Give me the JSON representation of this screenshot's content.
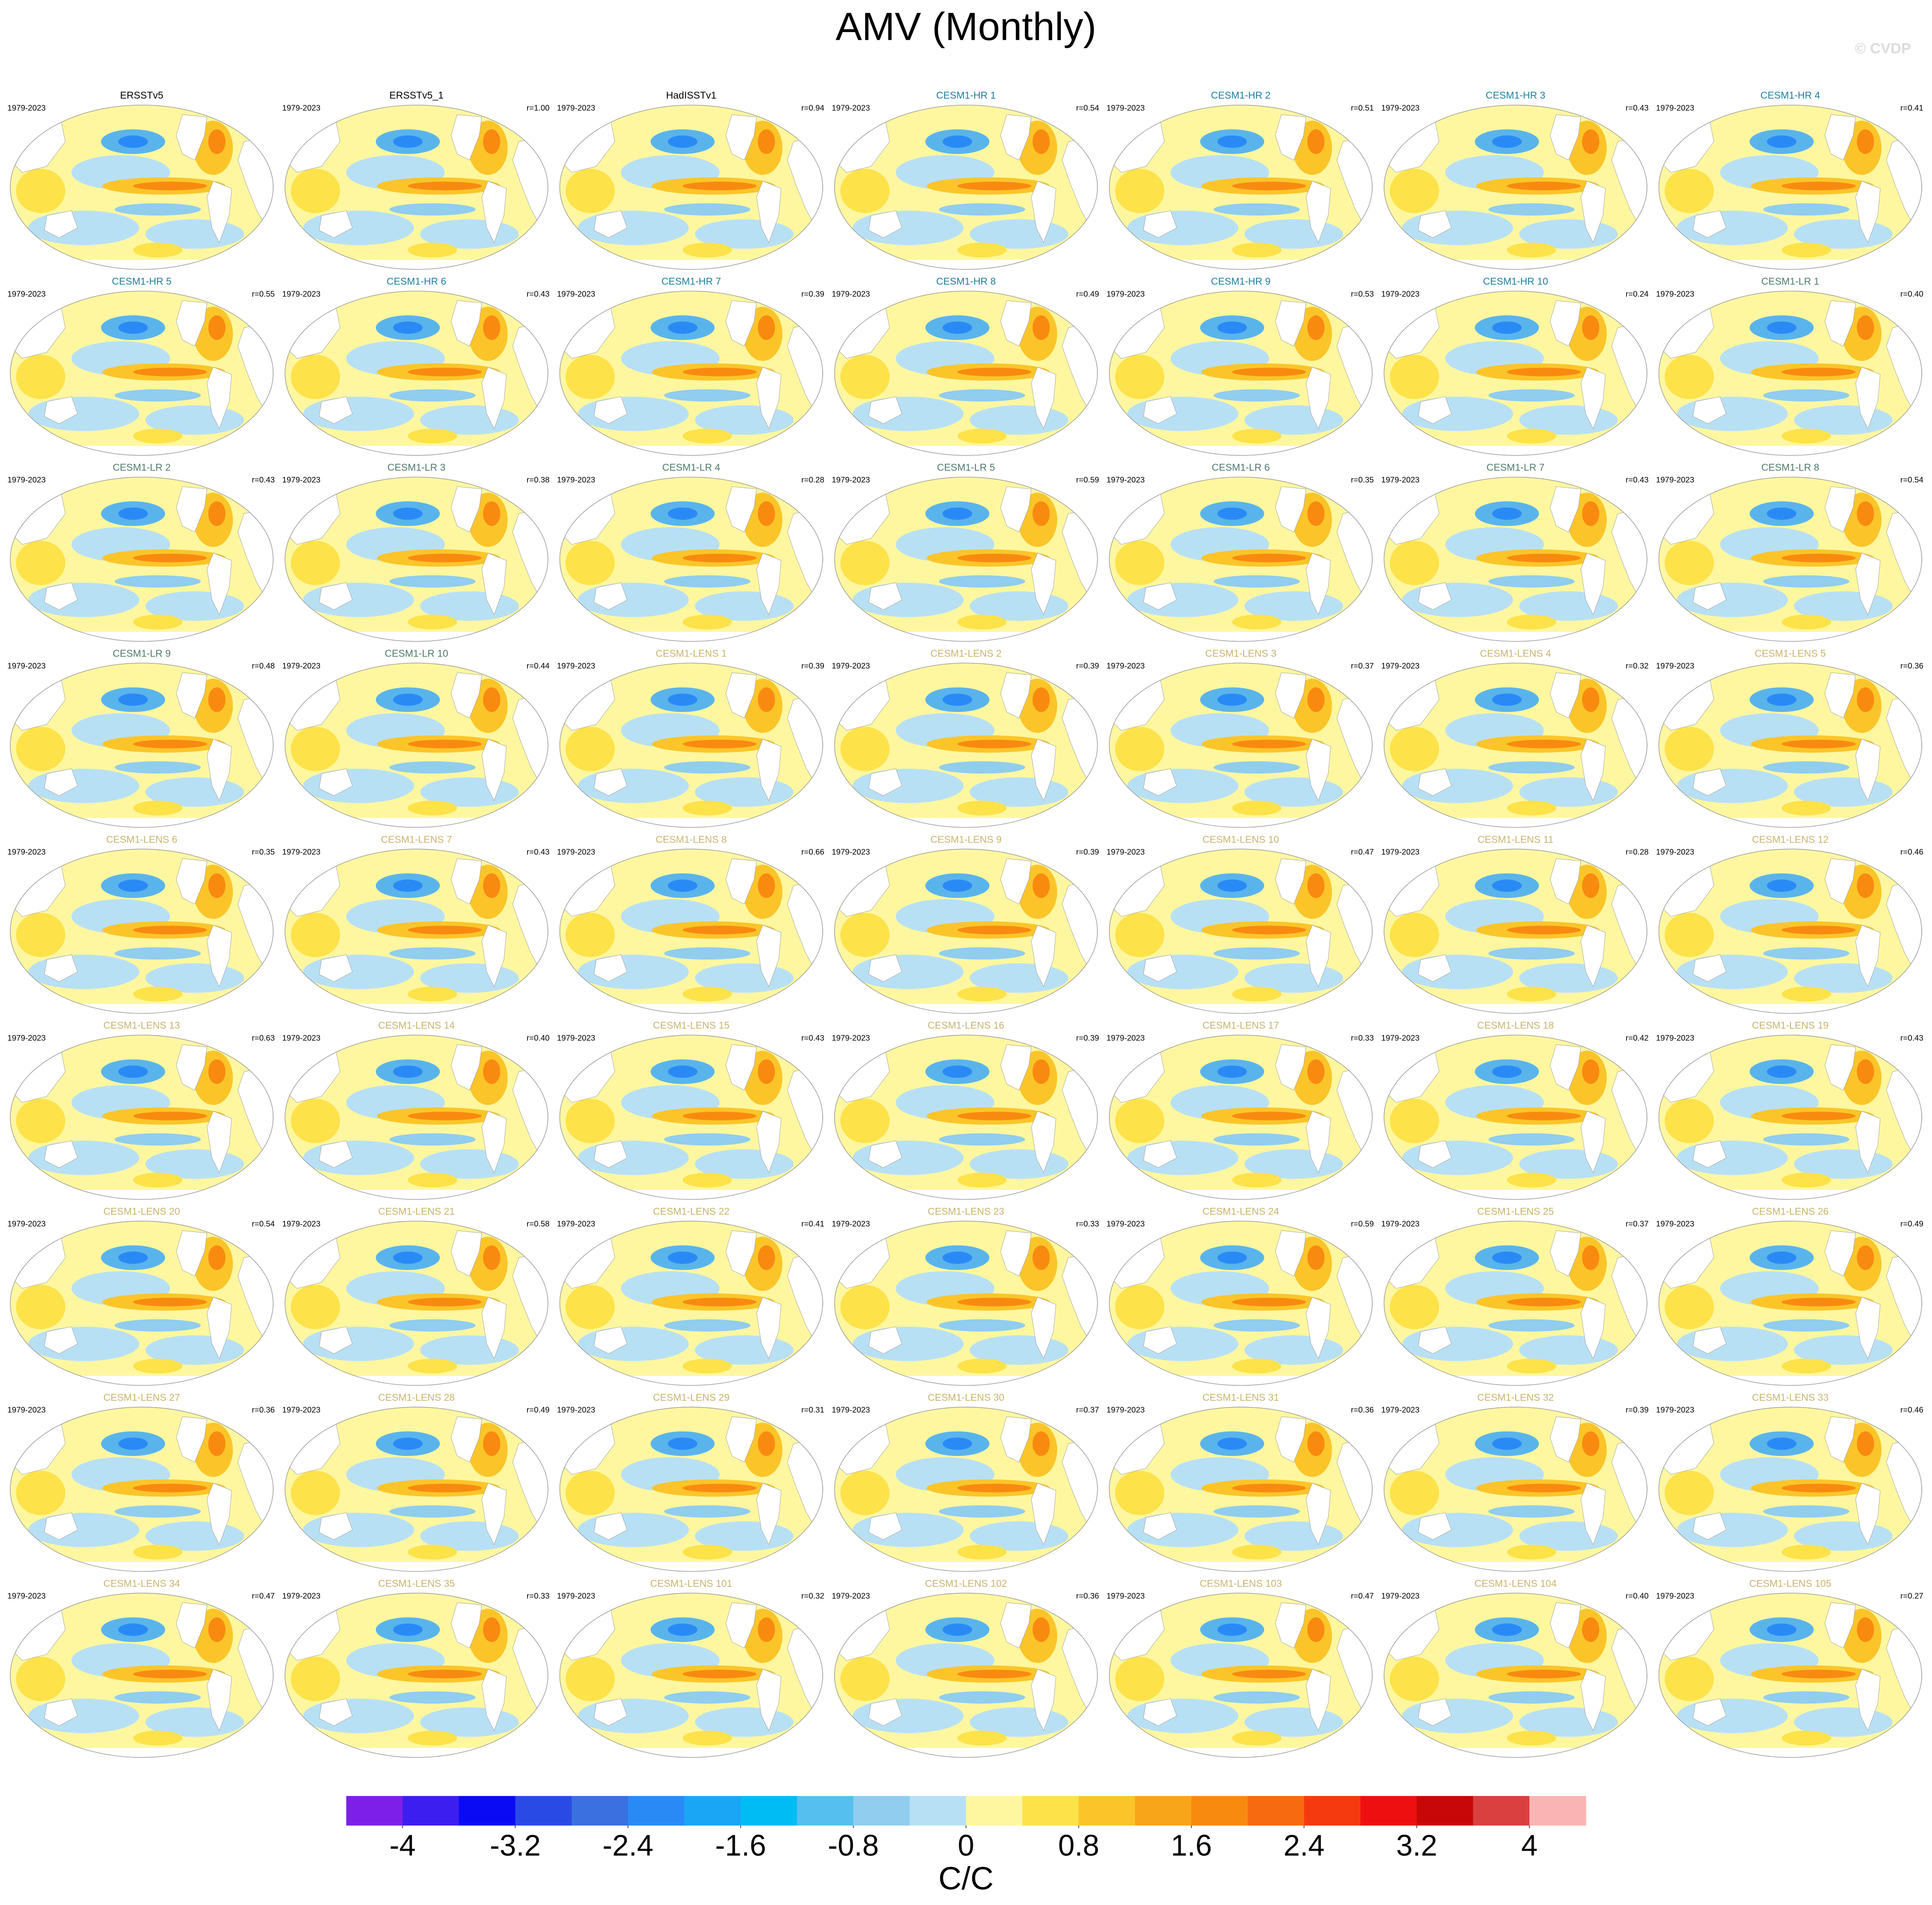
{
  "title": "AMV (Monthly)",
  "watermark": "© CVDP",
  "panels": [
    {
      "title": "ERSSTv5",
      "period": "1979-2023",
      "title_color": "#000000"
    },
    {
      "title": "ERSSTv5_1",
      "period": "1979-2023",
      "r": "r=1.00",
      "title_color": "#000000"
    },
    {
      "title": "HadISSTv1",
      "period": "1979-2023",
      "r": "r=0.94",
      "title_color": "#000000"
    },
    {
      "title": "CESM1-HR 1",
      "period": "1979-2023",
      "r": "r=0.54",
      "title_color": "#1f7f9f"
    },
    {
      "title": "CESM1-HR 2",
      "period": "1979-2023",
      "r": "r=0.51",
      "title_color": "#1f7f9f"
    },
    {
      "title": "CESM1-HR 3",
      "period": "1979-2023",
      "r": "r=0.43",
      "title_color": "#1f7f9f"
    },
    {
      "title": "CESM1-HR 4",
      "period": "1979-2023",
      "r": "r=0.41",
      "title_color": "#1f7f9f"
    },
    {
      "title": "CESM1-HR 5",
      "period": "1979-2023",
      "r": "r=0.55",
      "title_color": "#1f7f9f"
    },
    {
      "title": "CESM1-HR 6",
      "period": "1979-2023",
      "r": "r=0.43",
      "title_color": "#1f7f9f"
    },
    {
      "title": "CESM1-HR 7",
      "period": "1979-2023",
      "r": "r=0.39",
      "title_color": "#1f7f9f"
    },
    {
      "title": "CESM1-HR 8",
      "period": "1979-2023",
      "r": "r=0.49",
      "title_color": "#1f7f9f"
    },
    {
      "title": "CESM1-HR 9",
      "period": "1979-2023",
      "r": "r=0.53",
      "title_color": "#1f7f9f"
    },
    {
      "title": "CESM1-HR 10",
      "period": "1979-2023",
      "r": "r=0.24",
      "title_color": "#1f7f9f"
    },
    {
      "title": "CESM1-LR 1",
      "period": "1979-2023",
      "r": "r=0.40",
      "title_color": "#4f7a6e"
    },
    {
      "title": "CESM1-LR 2",
      "period": "1979-2023",
      "r": "r=0.43",
      "title_color": "#4f7a6e"
    },
    {
      "title": "CESM1-LR 3",
      "period": "1979-2023",
      "r": "r=0.38",
      "title_color": "#4f7a6e"
    },
    {
      "title": "CESM1-LR 4",
      "period": "1979-2023",
      "r": "r=0.28",
      "title_color": "#4f7a6e"
    },
    {
      "title": "CESM1-LR 5",
      "period": "1979-2023",
      "r": "r=0.59",
      "title_color": "#4f7a6e"
    },
    {
      "title": "CESM1-LR 6",
      "period": "1979-2023",
      "r": "r=0.35",
      "title_color": "#4f7a6e"
    },
    {
      "title": "CESM1-LR 7",
      "period": "1979-2023",
      "r": "r=0.43",
      "title_color": "#4f7a6e"
    },
    {
      "title": "CESM1-LR 8",
      "period": "1979-2023",
      "r": "r=0.54",
      "title_color": "#4f7a6e"
    },
    {
      "title": "CESM1-LR 9",
      "period": "1979-2023",
      "r": "r=0.48",
      "title_color": "#4f7a6e"
    },
    {
      "title": "CESM1-LR 10",
      "period": "1979-2023",
      "r": "r=0.44",
      "title_color": "#4f7a6e"
    },
    {
      "title": "CESM1-LENS 1",
      "period": "1979-2023",
      "r": "r=0.39",
      "title_color": "#c9b46e"
    },
    {
      "title": "CESM1-LENS 2",
      "period": "1979-2023",
      "r": "r=0.39",
      "title_color": "#c9b46e"
    },
    {
      "title": "CESM1-LENS 3",
      "period": "1979-2023",
      "r": "r=0.37",
      "title_color": "#c9b46e"
    },
    {
      "title": "CESM1-LENS 4",
      "period": "1979-2023",
      "r": "r=0.32",
      "title_color": "#c9b46e"
    },
    {
      "title": "CESM1-LENS 5",
      "period": "1979-2023",
      "r": "r=0.36",
      "title_color": "#c9b46e"
    },
    {
      "title": "CESM1-LENS 6",
      "period": "1979-2023",
      "r": "r=0.35",
      "title_color": "#c9b46e"
    },
    {
      "title": "CESM1-LENS 7",
      "period": "1979-2023",
      "r": "r=0.43",
      "title_color": "#c9b46e"
    },
    {
      "title": "CESM1-LENS 8",
      "period": "1979-2023",
      "r": "r=0.66",
      "title_color": "#c9b46e"
    },
    {
      "title": "CESM1-LENS 9",
      "period": "1979-2023",
      "r": "r=0.39",
      "title_color": "#c9b46e"
    },
    {
      "title": "CESM1-LENS 10",
      "period": "1979-2023",
      "r": "r=0.47",
      "title_color": "#c9b46e"
    },
    {
      "title": "CESM1-LENS 11",
      "period": "1979-2023",
      "r": "r=0.28",
      "title_color": "#c9b46e"
    },
    {
      "title": "CESM1-LENS 12",
      "period": "1979-2023",
      "r": "r=0.46",
      "title_color": "#c9b46e"
    },
    {
      "title": "CESM1-LENS 13",
      "period": "1979-2023",
      "r": "r=0.63",
      "title_color": "#c9b46e"
    },
    {
      "title": "CESM1-LENS 14",
      "period": "1979-2023",
      "r": "r=0.40",
      "title_color": "#c9b46e"
    },
    {
      "title": "CESM1-LENS 15",
      "period": "1979-2023",
      "r": "r=0.43",
      "title_color": "#c9b46e"
    },
    {
      "title": "CESM1-LENS 16",
      "period": "1979-2023",
      "r": "r=0.39",
      "title_color": "#c9b46e"
    },
    {
      "title": "CESM1-LENS 17",
      "period": "1979-2023",
      "r": "r=0.33",
      "title_color": "#c9b46e"
    },
    {
      "title": "CESM1-LENS 18",
      "period": "1979-2023",
      "r": "r=0.42",
      "title_color": "#c9b46e"
    },
    {
      "title": "CESM1-LENS 19",
      "period": "1979-2023",
      "r": "r=0.43",
      "title_color": "#c9b46e"
    },
    {
      "title": "CESM1-LENS 20",
      "period": "1979-2023",
      "r": "r=0.54",
      "title_color": "#c9b46e"
    },
    {
      "title": "CESM1-LENS 21",
      "period": "1979-2023",
      "r": "r=0.58",
      "title_color": "#c9b46e"
    },
    {
      "title": "CESM1-LENS 22",
      "period": "1979-2023",
      "r": "r=0.41",
      "title_color": "#c9b46e"
    },
    {
      "title": "CESM1-LENS 23",
      "period": "1979-2023",
      "r": "r=0.33",
      "title_color": "#c9b46e"
    },
    {
      "title": "CESM1-LENS 24",
      "period": "1979-2023",
      "r": "r=0.59",
      "title_color": "#c9b46e"
    },
    {
      "title": "CESM1-LENS 25",
      "period": "1979-2023",
      "r": "r=0.37",
      "title_color": "#c9b46e"
    },
    {
      "title": "CESM1-LENS 26",
      "period": "1979-2023",
      "r": "r=0.49",
      "title_color": "#c9b46e"
    },
    {
      "title": "CESM1-LENS 27",
      "period": "1979-2023",
      "r": "r=0.36",
      "title_color": "#c9b46e"
    },
    {
      "title": "CESM1-LENS 28",
      "period": "1979-2023",
      "r": "r=0.49",
      "title_color": "#c9b46e"
    },
    {
      "title": "CESM1-LENS 29",
      "period": "1979-2023",
      "r": "r=0.31",
      "title_color": "#c9b46e"
    },
    {
      "title": "CESM1-LENS 30",
      "period": "1979-2023",
      "r": "r=0.37",
      "title_color": "#c9b46e"
    },
    {
      "title": "CESM1-LENS 31",
      "period": "1979-2023",
      "r": "r=0.36",
      "title_color": "#c9b46e"
    },
    {
      "title": "CESM1-LENS 32",
      "period": "1979-2023",
      "r": "r=0.39",
      "title_color": "#c9b46e"
    },
    {
      "title": "CESM1-LENS 33",
      "period": "1979-2023",
      "r": "r=0.46",
      "title_color": "#c9b46e"
    },
    {
      "title": "CESM1-LENS 34",
      "period": "1979-2023",
      "r": "r=0.47",
      "title_color": "#c9b46e"
    },
    {
      "title": "CESM1-LENS 35",
      "period": "1979-2023",
      "r": "r=0.33",
      "title_color": "#c9b46e"
    },
    {
      "title": "CESM1-LENS 101",
      "period": "1979-2023",
      "r": "r=0.32",
      "title_color": "#c9b46e"
    },
    {
      "title": "CESM1-LENS 102",
      "period": "1979-2023",
      "r": "r=0.36",
      "title_color": "#c9b46e"
    },
    {
      "title": "CESM1-LENS 103",
      "period": "1979-2023",
      "r": "r=0.47",
      "title_color": "#c9b46e"
    },
    {
      "title": "CESM1-LENS 104",
      "period": "1979-2023",
      "r": "r=0.40",
      "title_color": "#c9b46e"
    },
    {
      "title": "CESM1-LENS 105",
      "period": "1979-2023",
      "r": "r=0.27",
      "title_color": "#c9b46e"
    }
  ],
  "colorbar": {
    "label": "C/C",
    "levels": [
      -4,
      -3.6,
      -3.2,
      -2.8,
      -2.4,
      -2,
      -1.6,
      -1.2,
      -0.8,
      -0.4,
      0,
      0.4,
      0.8,
      1.2,
      1.6,
      2,
      2.4,
      2.8,
      3.2,
      3.6,
      4
    ],
    "ticks": [
      -4,
      -3.2,
      -2.4,
      -1.6,
      -0.8,
      0,
      0.8,
      1.6,
      2.4,
      3.2,
      4
    ],
    "colors": [
      "#7d1fe8",
      "#3d1ef0",
      "#0a0af5",
      "#2a4ae6",
      "#3a70e0",
      "#2a8af5",
      "#1aa6f5",
      "#00bcf5",
      "#55c0f0",
      "#90cdee",
      "#b8e0f5",
      "#fff7a0",
      "#fde24a",
      "#fbc52a",
      "#f9a51a",
      "#f98a10",
      "#f76a10",
      "#f53a10",
      "#ee1010",
      "#c80808",
      "#da4040",
      "#fbb4b4"
    ]
  }
}
